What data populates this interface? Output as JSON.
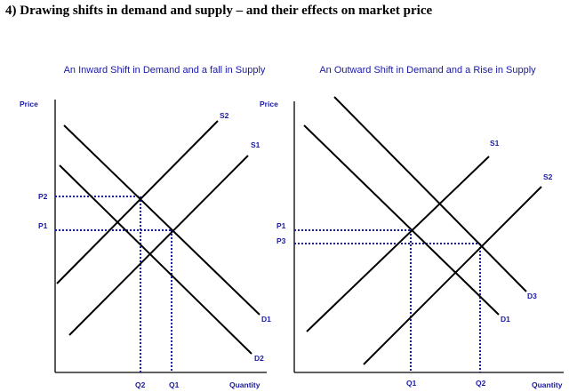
{
  "heading": "4) Drawing shifts in demand and supply – and their effects on market price",
  "left_panel": {
    "title": "An Inward Shift in Demand and a fall in Supply",
    "y_axis_label": "Price",
    "x_axis_label": "Quantity",
    "curves": {
      "s2": "S2",
      "s1": "S1",
      "d1": "D1",
      "d2": "D2"
    },
    "prices": {
      "p2": "P2",
      "p1": "P1"
    },
    "quantities": {
      "q2": "Q2",
      "q1": "Q1"
    }
  },
  "right_panel": {
    "title": "An Outward Shift in Demand and a Rise in Supply",
    "y_axis_label": "Price",
    "x_axis_label": "Quantity",
    "curves": {
      "s1": "S1",
      "s2": "S2",
      "d3": "D3",
      "d1": "D1"
    },
    "prices": {
      "p1": "P1",
      "p3": "P3"
    },
    "quantities": {
      "q1": "Q1",
      "q2": "Q2"
    }
  },
  "colors": {
    "accent": "#1a1aa6",
    "lines": "#000000"
  }
}
